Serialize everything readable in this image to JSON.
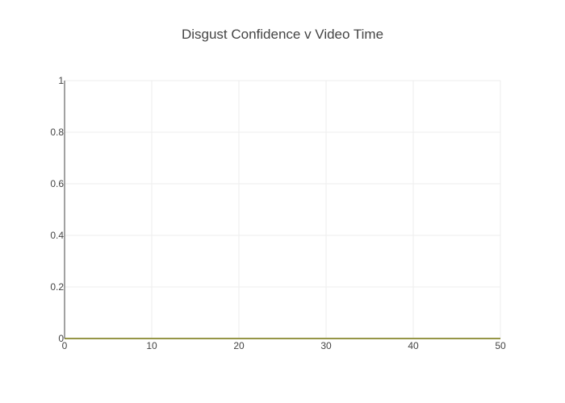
{
  "chart_data": {
    "type": "line",
    "title": "Disgust Confidence v Video Time",
    "xlabel": "",
    "ylabel": "",
    "xlim": [
      0,
      50
    ],
    "ylim": [
      0,
      1
    ],
    "x_ticks": [
      0,
      10,
      20,
      30,
      40,
      50
    ],
    "y_ticks": [
      0,
      0.2,
      0.4,
      0.6,
      0.8,
      1
    ],
    "y_tick_labels": [
      "0",
      "0.2",
      "0.4",
      "0.6",
      "0.8",
      "1"
    ],
    "grid": true,
    "legend": "none",
    "series": [
      {
        "color": "#e8e84a",
        "x": [
          0,
          50
        ],
        "y": [
          0,
          0
        ]
      }
    ]
  }
}
